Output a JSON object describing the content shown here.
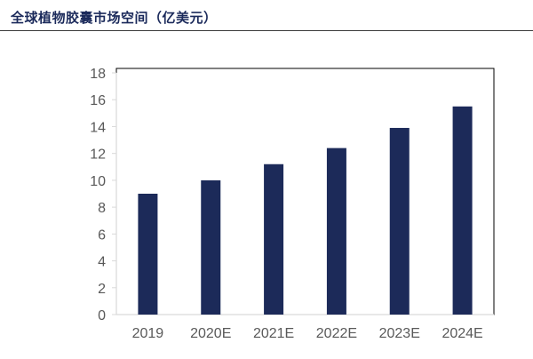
{
  "header": {
    "title": "全球植物胶囊市场空间（亿美元）"
  },
  "colors": {
    "bar": "#1c2a59",
    "axis": "#d9d9d9",
    "tick_text": "#595959",
    "frame": "#000000"
  },
  "chart_data": {
    "type": "bar",
    "categories": [
      "2019",
      "2020E",
      "2021E",
      "2022E",
      "2023E",
      "2024E"
    ],
    "values": [
      9.0,
      10.0,
      11.2,
      12.4,
      13.9,
      15.5
    ],
    "title": "全球植物胶囊市场空间（亿美元）",
    "xlabel": "",
    "ylabel": "",
    "ylim": [
      0,
      18
    ],
    "yticks": [
      0,
      2,
      4,
      6,
      8,
      10,
      12,
      14,
      16,
      18
    ],
    "grid": false,
    "legend": "none"
  }
}
